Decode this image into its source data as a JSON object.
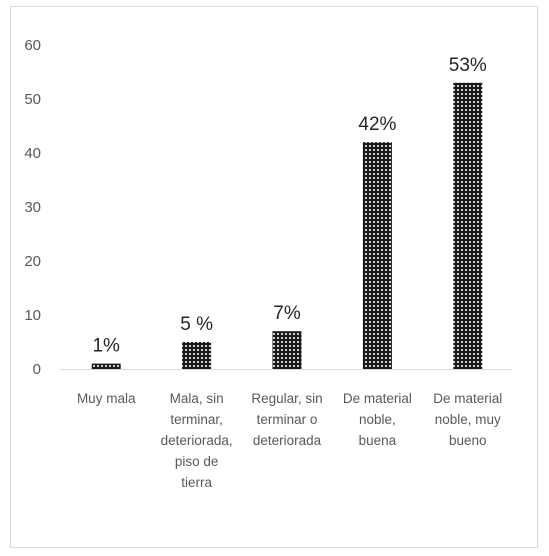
{
  "chart_data": {
    "type": "bar",
    "categories": [
      [
        "Muy mala"
      ],
      [
        "Mala, sin",
        "terminar,",
        "deteriorada,",
        "piso de",
        "tierra"
      ],
      [
        "Regular, sin",
        "terminar o",
        "deteriorada"
      ],
      [
        "De material",
        "noble,",
        "buena"
      ],
      [
        "De material",
        "noble, muy",
        "bueno"
      ]
    ],
    "values": [
      1,
      5,
      7,
      42,
      53
    ],
    "data_labels": [
      "1%",
      "5 %",
      "7%",
      "42%",
      "53%"
    ],
    "yticks": [
      "0",
      "10",
      "20",
      "30",
      "40",
      "50",
      "60"
    ],
    "ylim": [
      0,
      60
    ],
    "title": "",
    "xlabel": "",
    "ylabel": "",
    "grid": false,
    "legend": "none",
    "bar_pattern": "dotted",
    "colors": {
      "bar_fill": "#1a1a1a",
      "dot": "#ffffff",
      "axis": "#d9d9d9",
      "text": "#595959"
    }
  }
}
